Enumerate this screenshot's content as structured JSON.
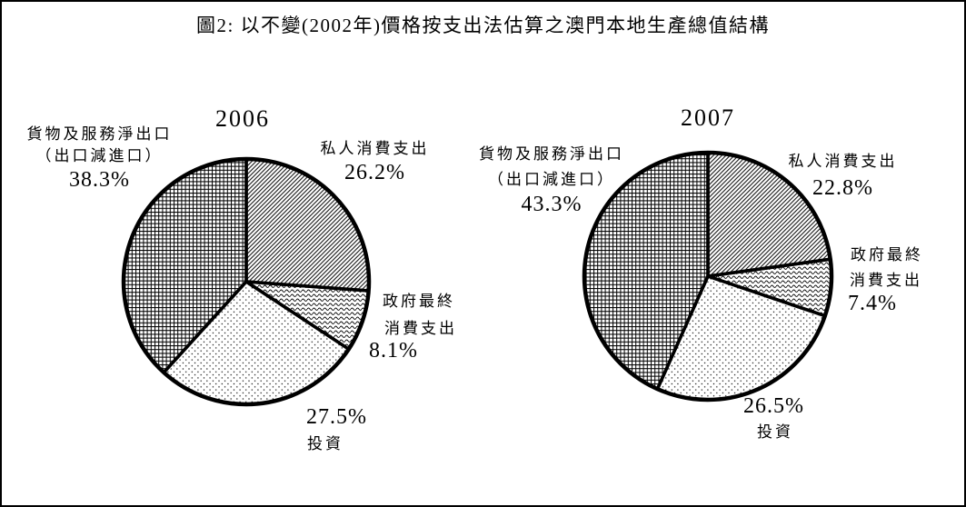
{
  "colors": {
    "ink": "#000000",
    "background": "#ffffff"
  },
  "figure_title": "圖2: 以不變(2002年)價格按支出法估算之澳門本地生產總值結構",
  "chart_data": [
    {
      "type": "pie",
      "year": "2006",
      "title": "2006",
      "direction": "clockwise",
      "start_angle_deg": 0,
      "legend_position": "around-slices",
      "slices": [
        {
          "label": "私人消費支出",
          "value": 26.2,
          "pattern": "diagonal-hatch"
        },
        {
          "label": "政府最終消費支出",
          "value": 8.1,
          "pattern": "wavy-lines"
        },
        {
          "label": "投資",
          "value": 27.5,
          "pattern": "dots"
        },
        {
          "label": "貨物及服務淨出口（出口減進口）",
          "value": 38.3,
          "pattern": "grid-crosshatch"
        }
      ],
      "annotations": {
        "net_line1": "貨物及服務淨出口",
        "net_line2": "（出口減進口）",
        "net_pct": "38.3%",
        "private_line1": "私人消費支出",
        "private_pct": "26.2%",
        "gov_line1": "政府最終",
        "gov_line2": "消費支出",
        "gov_pct": "8.1%",
        "invest_pct": "27.5%",
        "invest_label": "投資"
      }
    },
    {
      "type": "pie",
      "year": "2007",
      "title": "2007",
      "direction": "clockwise",
      "start_angle_deg": 0,
      "legend_position": "around-slices",
      "slices": [
        {
          "label": "私人消費支出",
          "value": 22.8,
          "pattern": "diagonal-hatch"
        },
        {
          "label": "政府最終消費支出",
          "value": 7.4,
          "pattern": "wavy-lines"
        },
        {
          "label": "投資",
          "value": 26.5,
          "pattern": "dots"
        },
        {
          "label": "貨物及服務淨出口（出口減進口）",
          "value": 43.3,
          "pattern": "grid-crosshatch"
        }
      ],
      "annotations": {
        "net_line1": "貨物及服務淨出口",
        "net_line2": "（出口減進口）",
        "net_pct": "43.3%",
        "private_line1": "私人消費支出",
        "private_pct": "22.8%",
        "gov_line1": "政府最終",
        "gov_line2": "消費支出",
        "gov_pct": "7.4%",
        "invest_pct": "26.5%",
        "invest_label": "投資"
      }
    }
  ]
}
